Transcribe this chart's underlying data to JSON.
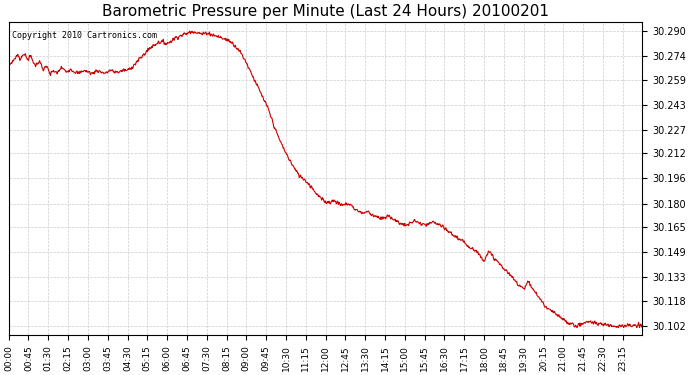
{
  "title": "Barometric Pressure per Minute (Last 24 Hours) 20100201",
  "copyright_text": "Copyright 2010 Cartronics.com",
  "line_color": "#cc0000",
  "background_color": "#ffffff",
  "grid_color": "#cccccc",
  "yticks": [
    30.102,
    30.118,
    30.133,
    30.149,
    30.165,
    30.18,
    30.196,
    30.212,
    30.227,
    30.243,
    30.259,
    30.274,
    30.29
  ],
  "ylim": [
    30.096,
    30.296
  ],
  "xtick_labels": [
    "00:00",
    "00:45",
    "01:30",
    "02:15",
    "03:00",
    "03:45",
    "04:30",
    "05:15",
    "06:00",
    "06:45",
    "07:30",
    "08:15",
    "09:00",
    "09:45",
    "10:30",
    "11:15",
    "12:00",
    "12:45",
    "13:30",
    "14:15",
    "15:00",
    "15:45",
    "16:30",
    "17:15",
    "18:00",
    "18:45",
    "19:30",
    "20:15",
    "21:00",
    "21:45",
    "22:30",
    "23:15"
  ],
  "key_points": [
    [
      0,
      30.268
    ],
    [
      10,
      30.271
    ],
    [
      20,
      30.275
    ],
    [
      25,
      30.272
    ],
    [
      35,
      30.276
    ],
    [
      42,
      30.272
    ],
    [
      50,
      30.274
    ],
    [
      60,
      30.268
    ],
    [
      70,
      30.271
    ],
    [
      78,
      30.265
    ],
    [
      85,
      30.268
    ],
    [
      95,
      30.262
    ],
    [
      100,
      30.265
    ],
    [
      110,
      30.263
    ],
    [
      120,
      30.267
    ],
    [
      130,
      30.264
    ],
    [
      140,
      30.266
    ],
    [
      150,
      30.264
    ],
    [
      160,
      30.263
    ],
    [
      170,
      30.265
    ],
    [
      180,
      30.264
    ],
    [
      190,
      30.263
    ],
    [
      200,
      30.265
    ],
    [
      210,
      30.264
    ],
    [
      220,
      30.263
    ],
    [
      230,
      30.265
    ],
    [
      240,
      30.264
    ],
    [
      250,
      30.264
    ],
    [
      260,
      30.265
    ],
    [
      270,
      30.265
    ],
    [
      280,
      30.267
    ],
    [
      290,
      30.27
    ],
    [
      300,
      30.273
    ],
    [
      310,
      30.276
    ],
    [
      320,
      30.279
    ],
    [
      330,
      30.281
    ],
    [
      340,
      30.283
    ],
    [
      350,
      30.283
    ],
    [
      360,
      30.282
    ],
    [
      370,
      30.284
    ],
    [
      380,
      30.286
    ],
    [
      390,
      30.287
    ],
    [
      400,
      30.288
    ],
    [
      410,
      30.289
    ],
    [
      420,
      30.29
    ],
    [
      430,
      30.289
    ],
    [
      440,
      30.288
    ],
    [
      450,
      30.289
    ],
    [
      460,
      30.288
    ],
    [
      470,
      30.287
    ],
    [
      480,
      30.286
    ],
    [
      490,
      30.285
    ],
    [
      500,
      30.284
    ],
    [
      510,
      30.282
    ],
    [
      520,
      30.279
    ],
    [
      530,
      30.275
    ],
    [
      540,
      30.27
    ],
    [
      550,
      30.264
    ],
    [
      560,
      30.258
    ],
    [
      570,
      30.252
    ],
    [
      580,
      30.246
    ],
    [
      590,
      30.24
    ],
    [
      600,
      30.232
    ],
    [
      610,
      30.224
    ],
    [
      620,
      30.218
    ],
    [
      630,
      30.212
    ],
    [
      640,
      30.207
    ],
    [
      650,
      30.202
    ],
    [
      660,
      30.198
    ],
    [
      670,
      30.196
    ],
    [
      680,
      30.193
    ],
    [
      690,
      30.19
    ],
    [
      700,
      30.186
    ],
    [
      710,
      30.183
    ],
    [
      720,
      30.181
    ],
    [
      730,
      30.181
    ],
    [
      740,
      30.182
    ],
    [
      750,
      30.18
    ],
    [
      760,
      30.179
    ],
    [
      770,
      30.18
    ],
    [
      778,
      30.179
    ],
    [
      785,
      30.177
    ],
    [
      795,
      30.175
    ],
    [
      805,
      30.174
    ],
    [
      815,
      30.175
    ],
    [
      825,
      30.173
    ],
    [
      835,
      30.172
    ],
    [
      845,
      30.17
    ],
    [
      855,
      30.171
    ],
    [
      865,
      30.172
    ],
    [
      875,
      30.17
    ],
    [
      885,
      30.168
    ],
    [
      895,
      30.167
    ],
    [
      905,
      30.166
    ],
    [
      915,
      30.168
    ],
    [
      925,
      30.169
    ],
    [
      935,
      30.167
    ],
    [
      945,
      30.166
    ],
    [
      955,
      30.167
    ],
    [
      965,
      30.168
    ],
    [
      975,
      30.167
    ],
    [
      985,
      30.165
    ],
    [
      995,
      30.163
    ],
    [
      1005,
      30.161
    ],
    [
      1015,
      30.159
    ],
    [
      1025,
      30.157
    ],
    [
      1035,
      30.155
    ],
    [
      1045,
      30.153
    ],
    [
      1055,
      30.151
    ],
    [
      1065,
      30.149
    ],
    [
      1070,
      30.147
    ],
    [
      1075,
      30.145
    ],
    [
      1080,
      30.144
    ],
    [
      1085,
      30.147
    ],
    [
      1090,
      30.149
    ],
    [
      1095,
      30.148
    ],
    [
      1100,
      30.146
    ],
    [
      1110,
      30.143
    ],
    [
      1120,
      30.14
    ],
    [
      1130,
      30.137
    ],
    [
      1140,
      30.134
    ],
    [
      1150,
      30.131
    ],
    [
      1160,
      30.128
    ],
    [
      1165,
      30.127
    ],
    [
      1170,
      30.126
    ],
    [
      1175,
      30.128
    ],
    [
      1180,
      30.13
    ],
    [
      1185,
      30.128
    ],
    [
      1190,
      30.126
    ],
    [
      1200,
      30.122
    ],
    [
      1210,
      30.118
    ],
    [
      1220,
      30.114
    ],
    [
      1230,
      30.112
    ],
    [
      1240,
      30.11
    ],
    [
      1250,
      30.108
    ],
    [
      1260,
      30.106
    ],
    [
      1270,
      30.104
    ],
    [
      1280,
      30.103
    ],
    [
      1290,
      30.102
    ],
    [
      1300,
      30.103
    ],
    [
      1310,
      30.104
    ],
    [
      1320,
      30.105
    ],
    [
      1330,
      30.104
    ],
    [
      1340,
      30.103
    ],
    [
      1350,
      30.103
    ],
    [
      1360,
      30.103
    ],
    [
      1370,
      30.102
    ],
    [
      1380,
      30.102
    ],
    [
      1390,
      30.102
    ],
    [
      1400,
      30.102
    ],
    [
      1410,
      30.102
    ],
    [
      1420,
      30.102
    ],
    [
      1430,
      30.102
    ],
    [
      1439,
      30.102
    ]
  ]
}
